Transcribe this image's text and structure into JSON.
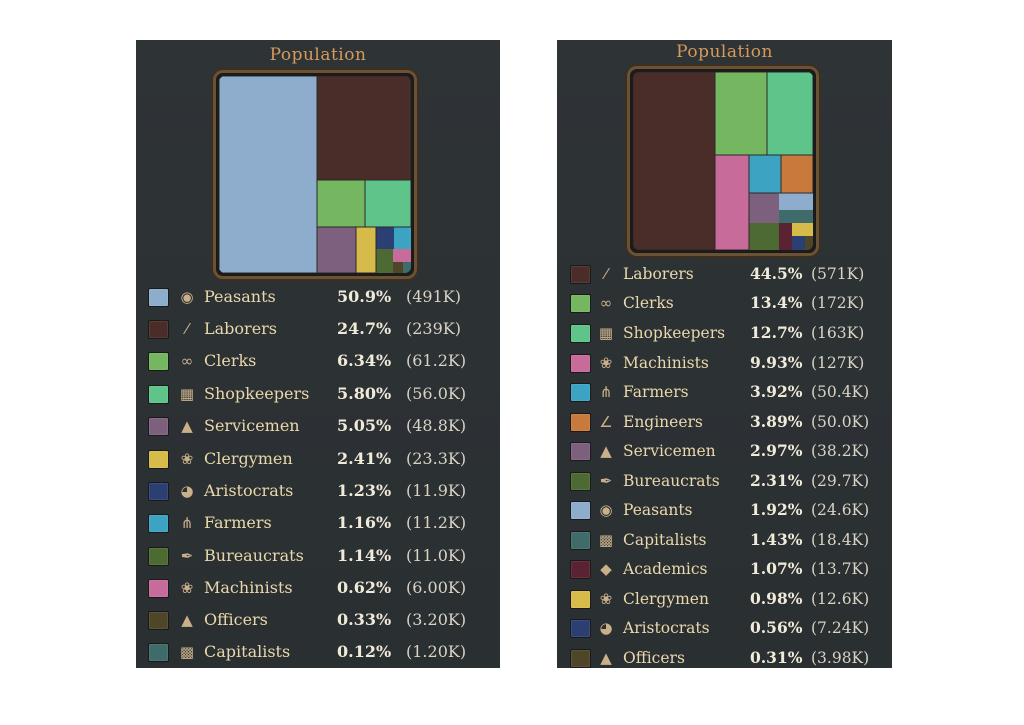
{
  "panels": [
    {
      "title": "Population",
      "rows": [
        {
          "name": "Peasants",
          "percent": "50.9%",
          "count": "(491K)",
          "color": "#8eaccb",
          "icon": "basket-icon"
        },
        {
          "name": "Laborers",
          "percent": "24.7%",
          "count": "(239K)",
          "color": "#4a2c28",
          "icon": "shovel-icon"
        },
        {
          "name": "Clerks",
          "percent": "6.34%",
          "count": "(61.2K)",
          "color": "#74b760",
          "icon": "spectacles-icon"
        },
        {
          "name": "Shopkeepers",
          "percent": "5.80%",
          "count": "(56.0K)",
          "color": "#5fc48a",
          "icon": "cash-register-icon"
        },
        {
          "name": "Servicemen",
          "percent": "5.05%",
          "count": "(48.8K)",
          "color": "#7d5f7e",
          "icon": "boot-icon"
        },
        {
          "name": "Clergymen",
          "percent": "2.41%",
          "count": "(23.3K)",
          "color": "#d7bb4a",
          "icon": "praying-hands-icon"
        },
        {
          "name": "Aristocrats",
          "percent": "1.23%",
          "count": "(11.9K)",
          "color": "#2b3f73",
          "icon": "crown-plate-icon"
        },
        {
          "name": "Farmers",
          "percent": "1.16%",
          "count": "(11.2K)",
          "color": "#3ca3c3",
          "icon": "pitchfork-icon"
        },
        {
          "name": "Bureaucrats",
          "percent": "1.14%",
          "count": "(11.0K)",
          "color": "#4e6a33",
          "icon": "quill-icon"
        },
        {
          "name": "Machinists",
          "percent": "0.62%",
          "count": "(6.00K)",
          "color": "#c76b9b",
          "icon": "wrench-icon"
        },
        {
          "name": "Officers",
          "percent": "0.33%",
          "count": "(3.20K)",
          "color": "#4f4528",
          "icon": "officer-cap-icon"
        },
        {
          "name": "Capitalists",
          "percent": "0.12%",
          "count": "(1.20K)",
          "color": "#3f6b6a",
          "icon": "top-hat-icon"
        }
      ]
    },
    {
      "title": "Population",
      "rows": [
        {
          "name": "Laborers",
          "percent": "44.5%",
          "count": "(571K)",
          "color": "#4a2c28",
          "icon": "shovel-icon"
        },
        {
          "name": "Clerks",
          "percent": "13.4%",
          "count": "(172K)",
          "color": "#74b760",
          "icon": "spectacles-icon"
        },
        {
          "name": "Shopkeepers",
          "percent": "12.7%",
          "count": "(163K)",
          "color": "#5fc48a",
          "icon": "cash-register-icon"
        },
        {
          "name": "Machinists",
          "percent": "9.93%",
          "count": "(127K)",
          "color": "#c76b9b",
          "icon": "wrench-icon"
        },
        {
          "name": "Farmers",
          "percent": "3.92%",
          "count": "(50.4K)",
          "color": "#3ca3c3",
          "icon": "pitchfork-icon"
        },
        {
          "name": "Engineers",
          "percent": "3.89%",
          "count": "(50.0K)",
          "color": "#c9793c",
          "icon": "compass-icon"
        },
        {
          "name": "Servicemen",
          "percent": "2.97%",
          "count": "(38.2K)",
          "color": "#7d5f7e",
          "icon": "boot-icon"
        },
        {
          "name": "Bureaucrats",
          "percent": "2.31%",
          "count": "(29.7K)",
          "color": "#4e6a33",
          "icon": "quill-icon"
        },
        {
          "name": "Peasants",
          "percent": "1.92%",
          "count": "(24.6K)",
          "color": "#8eaccb",
          "icon": "basket-icon"
        },
        {
          "name": "Capitalists",
          "percent": "1.43%",
          "count": "(18.4K)",
          "color": "#3f6b6a",
          "icon": "top-hat-icon"
        },
        {
          "name": "Academics",
          "percent": "1.07%",
          "count": "(13.7K)",
          "color": "#5a2233",
          "icon": "mortarboard-icon"
        },
        {
          "name": "Clergymen",
          "percent": "0.98%",
          "count": "(12.6K)",
          "color": "#d7bb4a",
          "icon": "praying-hands-icon"
        },
        {
          "name": "Aristocrats",
          "percent": "0.56%",
          "count": "(7.24K)",
          "color": "#2b3f73",
          "icon": "crown-plate-icon"
        },
        {
          "name": "Officers",
          "percent": "0.31%",
          "count": "(3.98K)",
          "color": "#4f4528",
          "icon": "officer-cap-icon"
        }
      ]
    }
  ]
}
